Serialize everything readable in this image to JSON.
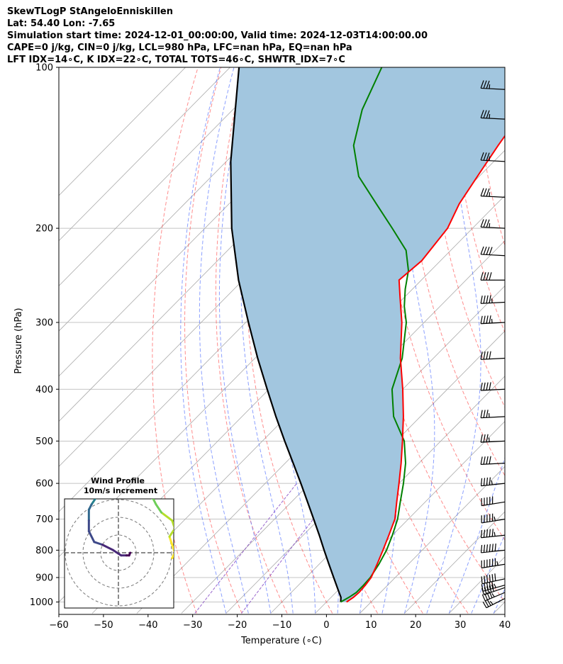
{
  "title_lines": [
    "SkewTLogP StAngeloEnniskillen",
    "Lat: 54.40   Lon: -7.65",
    "Simulation start time: 2024-12-01_00:00:00, Valid time: 2024-12-03T14:00:00.00",
    "CAPE=0 j/kg, CIN=0 j/kg, LCL=980 hPa, LFC=nan hPa, EQ=nan hPa",
    "LFT IDX=14∘C, K IDX=22∘C, TOTAL TOTS=46∘C, SHWTR_IDX=7∘C"
  ],
  "chart_data": {
    "type": "skewt",
    "xlabel": "Temperature (∘C)",
    "ylabel": "Pressure (hPa)",
    "xlim": [
      -60,
      40
    ],
    "ylim": [
      1050,
      100
    ],
    "x_ticks": [
      -60,
      -50,
      -40,
      -30,
      -20,
      -10,
      0,
      10,
      20,
      30,
      40
    ],
    "y_ticks": [
      1000,
      900,
      800,
      700,
      600,
      500,
      400,
      300,
      200,
      100
    ],
    "grid": true,
    "skew": 35,
    "colors": {
      "temperature": "#ff0000",
      "dewpoint": "#008000",
      "parcel": "#000000",
      "shade": "#a2c6df",
      "dry_adiabat": "#ff4040",
      "moist_adiabat": "#4060ff",
      "mixing_ratio": "#8040c0",
      "isotherm": "#aaaaaa",
      "grid": "#b0b0b0"
    },
    "temperature": {
      "pressure": [
        1000,
        980,
        960,
        930,
        900,
        850,
        800,
        750,
        700,
        650,
        600,
        550,
        500,
        450,
        400,
        350,
        300,
        270,
        250,
        230,
        200,
        180,
        160,
        140,
        120,
        100
      ],
      "temp": [
        4.5,
        5.0,
        5.2,
        5.0,
        4.6,
        3.0,
        1.2,
        -0.8,
        -3.0,
        -6.4,
        -10.0,
        -14.0,
        -18.6,
        -23.8,
        -30.0,
        -37.4,
        -45.0,
        -50.8,
        -55.0,
        -54.2,
        -55.6,
        -58.4,
        -60.4,
        -62.6,
        -64.8,
        -69.0
      ]
    },
    "dewpoint": {
      "pressure": [
        1000,
        980,
        960,
        930,
        900,
        850,
        800,
        750,
        700,
        650,
        600,
        550,
        500,
        450,
        400,
        350,
        300,
        280,
        260,
        240,
        220,
        200,
        180,
        160,
        140,
        120,
        100
      ],
      "dewpt": [
        3.2,
        4.0,
        4.6,
        4.6,
        4.4,
        3.4,
        2.0,
        0.0,
        -2.4,
        -5.6,
        -9.0,
        -13.0,
        -18.2,
        -26.0,
        -32.4,
        -37.0,
        -44.0,
        -48.0,
        -51.6,
        -55.0,
        -60.0,
        -68.0,
        -77.0,
        -87.0,
        -95.0,
        -101.0,
        -106.0
      ]
    },
    "parcel": {
      "pressure": [
        1000,
        980,
        950,
        900,
        850,
        800,
        750,
        700,
        650,
        600,
        550,
        500,
        450,
        400,
        350,
        300,
        250,
        200,
        150,
        100
      ],
      "temp": [
        3.2,
        2.2,
        0.0,
        -3.8,
        -7.8,
        -12.0,
        -16.4,
        -21.2,
        -26.4,
        -32.0,
        -38.2,
        -45.0,
        -52.4,
        -60.4,
        -69.4,
        -79.4,
        -91.0,
        -104.0,
        -119.0,
        -138.0
      ]
    },
    "wind_barbs": {
      "pressure": [
        985,
        960,
        940,
        930,
        905,
        850,
        800,
        750,
        700,
        650,
        600,
        550,
        500,
        450,
        400,
        350,
        300,
        275,
        250,
        225,
        200,
        175,
        150,
        125,
        110
      ],
      "speed_kt": [
        35,
        45,
        50,
        55,
        60,
        65,
        60,
        55,
        55,
        50,
        45,
        40,
        35,
        35,
        40,
        40,
        45,
        45,
        40,
        40,
        35,
        35,
        35,
        35,
        35
      ],
      "direction_deg": [
        230,
        235,
        240,
        245,
        250,
        255,
        260,
        260,
        255,
        255,
        260,
        265,
        265,
        265,
        265,
        265,
        265,
        265,
        270,
        275,
        275,
        275,
        275,
        275,
        275
      ]
    }
  },
  "inset": {
    "title_line1": "Wind Profile",
    "title_line2": "10m/s increment",
    "colormap": [
      "#fde725",
      "#b5de2b",
      "#6ece58",
      "#35b779",
      "#1f9e89",
      "#26828e",
      "#31688e",
      "#3e4989",
      "#482878",
      "#440154"
    ],
    "u": [
      10,
      10.5,
      10,
      9.5,
      10.5,
      10,
      8,
      7,
      6.5,
      5,
      3,
      2,
      1,
      -0.5,
      -1.5,
      -2.5,
      -4,
      -5,
      -5.5,
      -5.5,
      -5.5,
      -4.5,
      -3,
      -1,
      0.5,
      1.5,
      2,
      2.2
    ],
    "v": [
      -1,
      0,
      1.5,
      3,
      4.5,
      6,
      7.5,
      9,
      10,
      11,
      12.5,
      13,
      13.5,
      12,
      12,
      11,
      10.5,
      9,
      8,
      6,
      4,
      2,
      1.5,
      0.5,
      -0.5,
      -0.5,
      -0.5,
      0
    ]
  }
}
